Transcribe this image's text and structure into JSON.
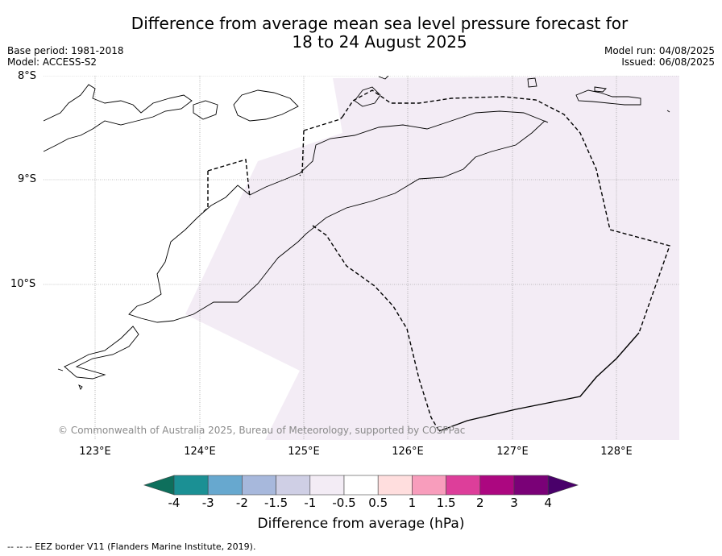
{
  "title": {
    "line1": "Difference from average mean sea level pressure forecast for",
    "line2": "18 to 24 August 2025"
  },
  "meta": {
    "base_period": "Base period: 1981-2018",
    "model": "Model: ACCESS-S2",
    "model_run": "Model run: 04/08/2025",
    "issued": "Issued: 06/08/2025"
  },
  "map": {
    "lat_labels": [
      "8°S",
      "9°S",
      "10°S"
    ],
    "lon_labels": [
      "123°E",
      "124°E",
      "125°E",
      "126°E",
      "127°E",
      "128°E"
    ],
    "copyright": "© Commonwealth of Australia 2025, Bureau of Meteorology, supported by COSPPac",
    "shading_color": "#f3ecf5"
  },
  "colorbar": {
    "label": "Difference from average (hPa)",
    "ticks": [
      "-4",
      "-3",
      "-2",
      "-1.5",
      "-1",
      "-0.5",
      "0.5",
      "1",
      "1.5",
      "2",
      "3",
      "4"
    ],
    "colors": [
      "#1b9094",
      "#67a8cf",
      "#a7b8dc",
      "#cfcfe5",
      "#f3ecf5",
      "#ffffff",
      "#ffdede",
      "#f89dbc",
      "#dd3e9a",
      "#ac0780",
      "#7a0177"
    ],
    "under_color": "#0e6f5c",
    "over_color": "#49006a"
  },
  "footer": {
    "source": "--  --  -- EEZ border V11 (Flanders Marine Institute, 2019)."
  }
}
